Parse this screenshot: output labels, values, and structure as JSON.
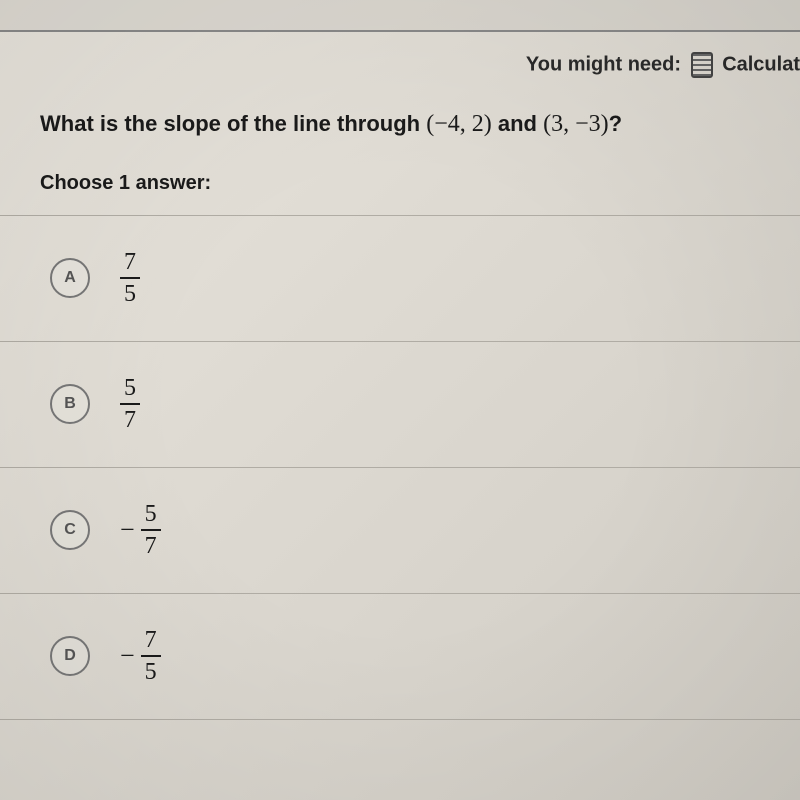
{
  "tools": {
    "label": "You might need:",
    "calculator_label": "Calculat"
  },
  "question": {
    "prefix": "What is the slope of the line through ",
    "point1": "(−4, 2)",
    "mid": " and ",
    "point2": "(3, −3)",
    "suffix": "?"
  },
  "choose_label": "Choose 1 answer:",
  "options": [
    {
      "letter": "A",
      "negative": false,
      "numerator": "7",
      "denominator": "5"
    },
    {
      "letter": "B",
      "negative": false,
      "numerator": "5",
      "denominator": "7"
    },
    {
      "letter": "C",
      "negative": true,
      "numerator": "5",
      "denominator": "7"
    },
    {
      "letter": "D",
      "negative": true,
      "numerator": "7",
      "denominator": "5"
    }
  ],
  "colors": {
    "text": "#1a1a1a",
    "divider": "#b0aca4",
    "radio_border": "#777777"
  }
}
